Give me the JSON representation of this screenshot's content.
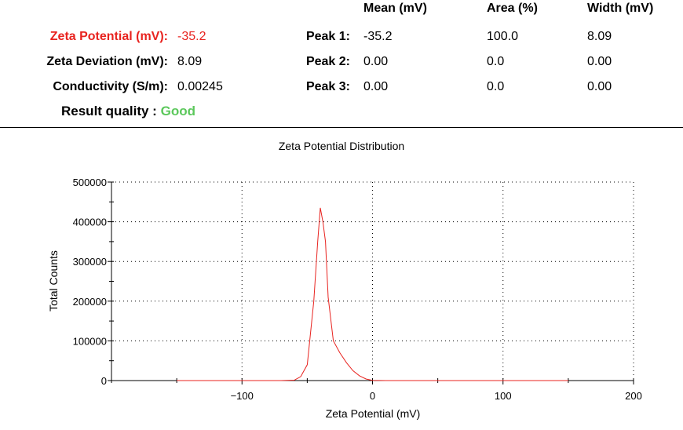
{
  "results": {
    "zeta_potential": {
      "label": "Zeta Potential (mV):",
      "value": "-35.2"
    },
    "zeta_deviation": {
      "label": "Zeta Deviation (mV):",
      "value": "8.09"
    },
    "conductivity": {
      "label": "Conductivity (S/m):",
      "value": "0.00245"
    },
    "quality": {
      "label": "Result quality :",
      "value": "Good"
    }
  },
  "peaks_table": {
    "headers": [
      "Mean (mV)",
      "Area (%)",
      "Width (mV)"
    ],
    "rows": [
      {
        "label": "Peak 1:",
        "mean": "-35.2",
        "area": "100.0",
        "width": "8.09"
      },
      {
        "label": "Peak 2:",
        "mean": "0.00",
        "area": "0.0",
        "width": "0.00"
      },
      {
        "label": "Peak 3:",
        "mean": "0.00",
        "area": "0.0",
        "width": "0.00"
      }
    ]
  },
  "colors": {
    "highlight": "#e8231f",
    "good": "#5cc85c",
    "series": "#e8231f"
  },
  "chart_data": {
    "type": "line",
    "title": "Zeta Potential Distribution",
    "xlabel": "Zeta Potential (mV)",
    "ylabel": "Total Counts",
    "xlim": [
      -200,
      200
    ],
    "ylim": [
      0,
      500000
    ],
    "xticks": [
      -100,
      0,
      100,
      200
    ],
    "yticks": [
      0,
      100000,
      200000,
      300000,
      400000,
      500000
    ],
    "grid": true,
    "series": [
      {
        "x": [
          -150,
          -70,
          -60,
          -55,
          -50,
          -45,
          -42,
          -40,
          -38,
          -36,
          -34,
          -30,
          -25,
          -20,
          -15,
          -10,
          -5,
          0,
          10,
          150
        ],
        "y": [
          0,
          0,
          1000,
          10000,
          40000,
          200000,
          350000,
          435000,
          400000,
          350000,
          210000,
          100000,
          70000,
          45000,
          25000,
          12000,
          4000,
          500,
          0,
          0
        ]
      }
    ]
  }
}
